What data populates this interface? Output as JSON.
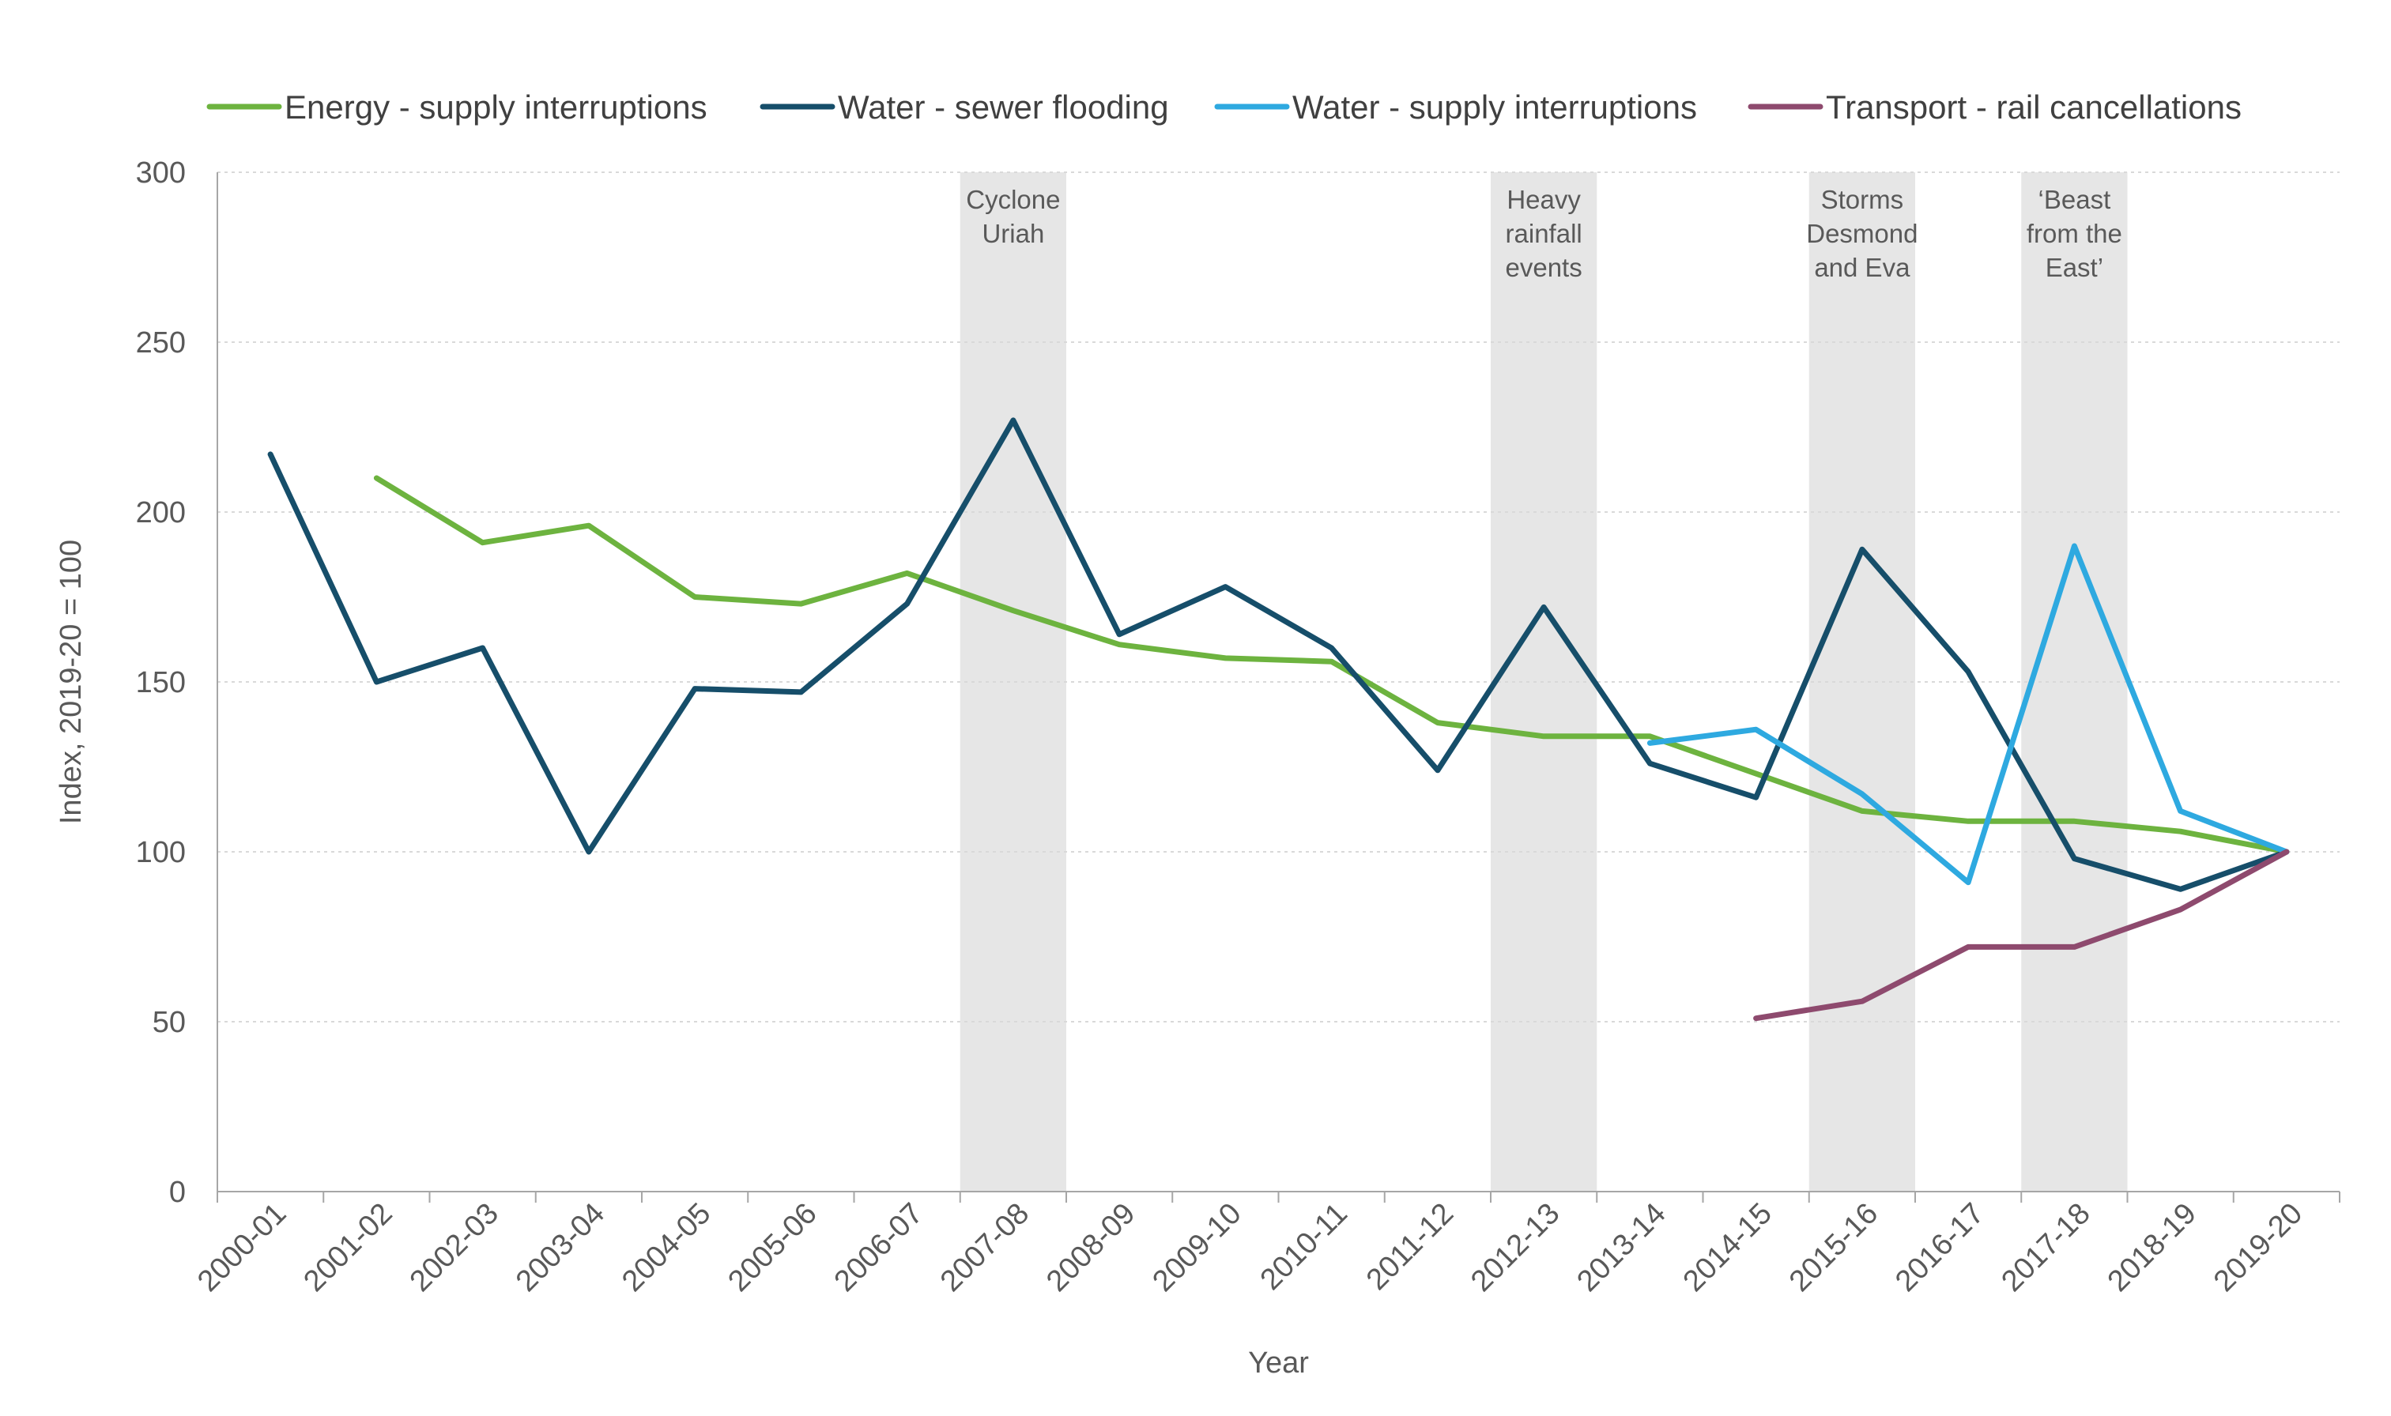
{
  "chart_data": {
    "type": "line",
    "title": "",
    "xlabel": "Year",
    "ylabel": "Index, 2019-20 = 100",
    "ylim": [
      0,
      300
    ],
    "yticks": [
      0,
      50,
      100,
      150,
      200,
      250,
      300
    ],
    "grid": "horizontal dashed",
    "legend_position": "top",
    "categories": [
      "2000-01",
      "2001-02",
      "2002-03",
      "2003-04",
      "2004-05",
      "2005-06",
      "2006-07",
      "2007-08",
      "2008-09",
      "2009-10",
      "2010-11",
      "2011-12",
      "2012-13",
      "2013-14",
      "2014-15",
      "2015-16",
      "2016-17",
      "2017-18",
      "2018-19",
      "2019-20"
    ],
    "series": [
      {
        "name": "Energy - supply interruptions",
        "color": "#6db33f",
        "values": [
          null,
          210,
          191,
          196,
          175,
          173,
          182,
          171,
          161,
          157,
          156,
          138,
          134,
          134,
          123,
          112,
          109,
          109,
          106,
          100
        ]
      },
      {
        "name": "Water - sewer flooding",
        "color": "#164e6a",
        "values": [
          217,
          150,
          160,
          100,
          148,
          147,
          173,
          227,
          164,
          178,
          160,
          124,
          172,
          126,
          116,
          189,
          153,
          98,
          89,
          100
        ]
      },
      {
        "name": "Water - supply interruptions",
        "color": "#2ea9e0",
        "values": [
          null,
          null,
          null,
          null,
          null,
          null,
          null,
          null,
          null,
          null,
          null,
          null,
          null,
          132,
          136,
          117,
          91,
          190,
          112,
          100
        ]
      },
      {
        "name": "Transport - rail cancellations",
        "color": "#8e4a6e",
        "values": [
          null,
          null,
          null,
          null,
          null,
          null,
          null,
          null,
          null,
          null,
          null,
          null,
          null,
          null,
          51,
          56,
          72,
          72,
          83,
          100
        ]
      }
    ],
    "events": [
      {
        "category": "2007-08",
        "lines": [
          "Cyclone",
          "Uriah"
        ]
      },
      {
        "category": "2012-13",
        "lines": [
          "Heavy",
          "rainfall",
          "events"
        ]
      },
      {
        "category": "2015-16",
        "lines": [
          "Storms",
          "Desmond",
          "and Eva"
        ]
      },
      {
        "category": "2017-18",
        "lines": [
          "‘Beast",
          "from the",
          "East’"
        ]
      }
    ],
    "event_band_color": "#e6e6e6",
    "grid_color": "#d9d9d9",
    "axis_color": "#a6a6a6"
  }
}
